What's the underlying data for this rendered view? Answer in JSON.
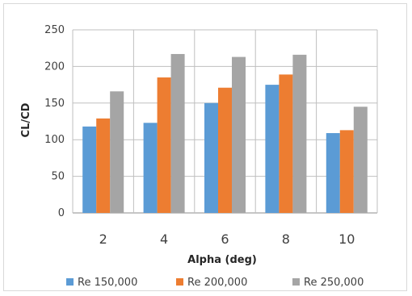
{
  "chart_data": {
    "type": "bar",
    "categories": [
      "2",
      "4",
      "6",
      "8",
      "10"
    ],
    "series": [
      {
        "name": "Re 150,000",
        "values": [
          118,
          123,
          150,
          175,
          109
        ],
        "color": "#5b9bd5"
      },
      {
        "name": "Re 200,000",
        "values": [
          129,
          185,
          171,
          189,
          113
        ],
        "color": "#ed7d31"
      },
      {
        "name": "Re 250,000",
        "values": [
          166,
          217,
          213,
          216,
          145
        ],
        "color": "#a5a5a5"
      }
    ],
    "xlabel": "Alpha (deg)",
    "ylabel": "CL/CD",
    "ylim": [
      0,
      250
    ],
    "yticks": [
      0,
      50,
      100,
      150,
      200,
      250
    ],
    "grid": true,
    "legend": "bottom"
  }
}
